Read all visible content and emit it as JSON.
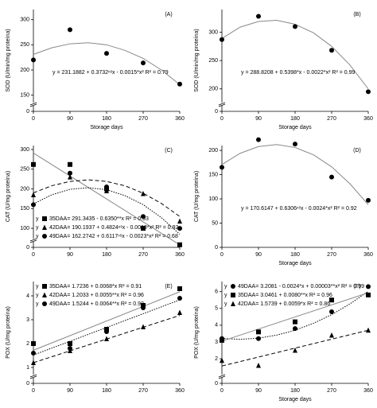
{
  "chart_data": [
    {
      "type": "scatter",
      "label": "(A)",
      "ylabel": "SOD (U/min/mg proteína)",
      "xlabel": "Storage days",
      "legend": "lower right",
      "x": [
        0,
        90,
        180,
        270,
        360
      ],
      "xlim": [
        0,
        360
      ],
      "xticks": [
        0,
        90,
        180,
        270,
        360
      ],
      "ylim": [
        0,
        320
      ],
      "yticks": [
        0,
        150,
        200,
        250,
        300
      ],
      "ybreak": 140,
      "series": [
        {
          "marker": "circle",
          "color": "#000000",
          "line_color": "#888888",
          "dash": "solid",
          "values": [
            220,
            280,
            233,
            214,
            172
          ],
          "equation": "y = 231.1882 + 0.3732ⁿˢx - 0.0015*x² R² = 0.79",
          "fit": {
            "x": [
              0,
              45,
              90,
              135,
              180,
              225,
              270,
              315,
              360
            ],
            "values": [
              231,
              244,
              252,
              254,
              250,
              239,
              223,
              200,
              171
            ]
          }
        }
      ]
    },
    {
      "type": "scatter",
      "label": "(B)",
      "ylabel": "SOD (U/min/mg proteína)",
      "xlabel": "Storage days",
      "legend": "lower right",
      "x": [
        0,
        90,
        180,
        270,
        360
      ],
      "xlim": [
        0,
        360
      ],
      "xticks": [
        0,
        90,
        180,
        270,
        360
      ],
      "ylim": [
        0,
        340
      ],
      "yticks": [
        0,
        200,
        250,
        300
      ],
      "ybreak": 180,
      "series": [
        {
          "marker": "circle",
          "color": "#000000",
          "line_color": "#888888",
          "dash": "solid",
          "values": [
            287,
            328,
            310,
            268,
            195
          ],
          "equation": "y = 288.8208 + 0.5398*x - 0.0022*x² R² = 0.99",
          "fit": {
            "x": [
              0,
              45,
              90,
              135,
              180,
              225,
              270,
              315,
              360
            ],
            "values": [
              289,
              309,
              319,
              321,
              314,
              299,
              275,
              242,
              200
            ]
          }
        }
      ]
    },
    {
      "type": "scatter",
      "label": "(C)",
      "ylabel": "CAT (U/mg proteína)",
      "legend": "lower left",
      "legend_prefix": "y",
      "x": [
        0,
        90,
        180,
        270,
        360
      ],
      "xlim": [
        0,
        360
      ],
      "xticks": [
        0,
        90,
        180,
        270,
        360
      ],
      "ylim": [
        0,
        310
      ],
      "yticks": [
        0,
        100,
        150,
        200,
        250,
        300
      ],
      "ybreak": 80,
      "series": [
        {
          "name": "35DAA",
          "marker": "square",
          "color": "#000000",
          "line_color": "#888888",
          "dash": "solid",
          "values": [
            262,
            262,
            200,
            100,
            65
          ],
          "equation": "= 291.3435 - 0.6350**x R² = 0.93",
          "fit": {
            "x": [
              0,
              360
            ],
            "values": [
              291,
              63
            ]
          }
        },
        {
          "name": "42DAA",
          "marker": "triangle",
          "color": "#000000",
          "line_color": "#000000",
          "dash": "dash",
          "values": [
            185,
            230,
            195,
            188,
            118
          ],
          "equation": "= 190.1937 + 0.4824ⁿˢx - 0.0018*x² R² = 0.92",
          "fit": {
            "x": [
              0,
              45,
              90,
              135,
              180,
              225,
              270,
              315,
              360
            ],
            "values": [
              190,
              208,
              219,
              223,
              219,
              208,
              189,
              163,
              130
            ]
          }
        },
        {
          "name": "49DAA",
          "marker": "circle",
          "color": "#000000",
          "line_color": "#000000",
          "dash": "dot",
          "values": [
            160,
            240,
            205,
            130,
            100
          ],
          "equation": "= 162.2742 + 0.6117ⁿˢx - 0.0023*x² R² = 0.68",
          "fit": {
            "x": [
              0,
              45,
              90,
              135,
              180,
              225,
              270,
              315,
              360
            ],
            "values": [
              162,
              185,
              199,
              203,
              198,
              183,
              160,
              127,
              85
            ]
          }
        }
      ]
    },
    {
      "type": "scatter",
      "label": "(D)",
      "ylabel": "CAT (U/mg proteína)",
      "xlabel": "Storage days",
      "legend": "lower right",
      "x": [
        0,
        90,
        180,
        270,
        360
      ],
      "xlim": [
        0,
        360
      ],
      "xticks": [
        0,
        90,
        180,
        270,
        360
      ],
      "ylim": [
        0,
        210
      ],
      "yticks": [
        0,
        50,
        100,
        150,
        200
      ],
      "series": [
        {
          "marker": "circle",
          "color": "#000000",
          "line_color": "#888888",
          "dash": "solid",
          "values": [
            165,
            222,
            213,
            145,
            97
          ],
          "equation": "y = 170.6147 + 0.6306ⁿˢx - 0.0024*x² R² = 0.92",
          "fit": {
            "x": [
              0,
              45,
              90,
              135,
              180,
              225,
              270,
              315,
              360
            ],
            "values": [
              171,
              194,
              208,
              212,
              206,
              191,
              166,
              131,
              88
            ]
          }
        }
      ]
    },
    {
      "type": "scatter",
      "label": "(E)",
      "ylabel": "POX (U/mg proteína)",
      "legend": "upper left",
      "legend_prefix": "y",
      "x": [
        0,
        90,
        180,
        270,
        360
      ],
      "xlim": [
        0,
        360
      ],
      "xticks": [
        0,
        90,
        180,
        270,
        360
      ],
      "ylim": [
        0,
        4.6
      ],
      "yticks": [
        0,
        1,
        2,
        3,
        4
      ],
      "ybreak": 0.8,
      "series": [
        {
          "name": "35DAA",
          "marker": "square",
          "color": "#000000",
          "line_color": "#888888",
          "dash": "solid",
          "values": [
            2.0,
            2.0,
            2.6,
            3.6,
            4.3
          ],
          "equation": "= 1.7236 + 0.0068*x R² = 0.91",
          "fit": {
            "x": [
              0,
              360
            ],
            "values": [
              1.72,
              4.17
            ]
          }
        },
        {
          "name": "42DAA",
          "marker": "triangle",
          "color": "#000000",
          "line_color": "#000000",
          "dash": "dash",
          "values": [
            1.2,
            1.7,
            2.2,
            2.7,
            3.3
          ],
          "equation": "= 1.2033 + 0.0055**x R² = 0.96",
          "fit": {
            "x": [
              0,
              360
            ],
            "values": [
              1.2,
              3.18
            ]
          }
        },
        {
          "name": "49DAA",
          "marker": "circle",
          "color": "#000000",
          "line_color": "#000000",
          "dash": "dot",
          "values": [
            1.6,
            1.8,
            2.5,
            3.5,
            3.9
          ],
          "equation": "= 1.5244 + 0.0064**x R² = 0.92",
          "fit": {
            "x": [
              0,
              360
            ],
            "values": [
              1.52,
              3.83
            ]
          }
        }
      ]
    },
    {
      "type": "scatter",
      "label": "(F)",
      "ylabel": "POX (U/mg proteína)",
      "xlabel": "Storage days",
      "legend": "upper left",
      "legend_prefix": "y",
      "x": [
        0,
        90,
        180,
        270,
        360
      ],
      "xlim": [
        0,
        360
      ],
      "xticks": [
        0,
        90,
        180,
        270,
        360
      ],
      "ylim": [
        0,
        6.6
      ],
      "yticks": [
        0,
        2,
        3,
        4,
        5,
        6
      ],
      "ybreak": 1.2,
      "series": [
        {
          "name": "49DAA",
          "marker": "circle",
          "color": "#000000",
          "line_color": "#000000",
          "dash": "dot",
          "values": [
            3.2,
            3.2,
            3.8,
            4.8,
            6.3
          ],
          "equation": "= 3.2081 - 0.0024*x + 0.00003**x² R² = 0.99",
          "fit": {
            "x": [
              0,
              45,
              90,
              135,
              180,
              225,
              270,
              315,
              360
            ],
            "values": [
              3.21,
              3.16,
              3.23,
              3.41,
              3.7,
              4.11,
              4.63,
              5.27,
              6.02
            ]
          }
        },
        {
          "name": "35DAA",
          "marker": "square",
          "color": "#000000",
          "line_color": "#888888",
          "dash": "solid",
          "values": [
            3.1,
            3.6,
            4.2,
            5.5,
            5.8
          ],
          "equation": "= 3.0461 + 0.0080**x R² = 0.96",
          "fit": {
            "x": [
              0,
              360
            ],
            "values": [
              3.05,
              5.93
            ]
          }
        },
        {
          "name": "42DAA",
          "marker": "triangle",
          "color": "#000000",
          "line_color": "#000000",
          "dash": "dash",
          "values": [
            1.9,
            1.6,
            2.5,
            3.4,
            3.7
          ],
          "equation": "= 1.5739 + 0.0059*x R² = 0.86",
          "fit": {
            "x": [
              0,
              360
            ],
            "values": [
              1.57,
              3.7
            ]
          }
        }
      ]
    }
  ]
}
